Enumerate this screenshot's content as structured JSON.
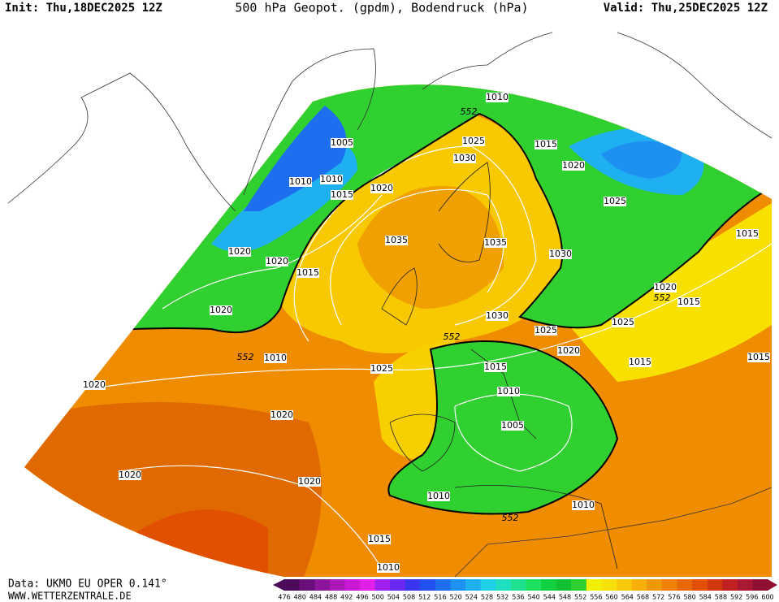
{
  "header": {
    "init": "Init: Thu,18DEC2025 12Z",
    "title": "500 hPa Geopot. (gpdm), Bodendruck (hPa)",
    "valid": "Valid: Thu,25DEC2025 12Z"
  },
  "footer": {
    "source": "Data: UKMO EU OPER 0.141°",
    "website": "WWW.WETTERZENTRALE.DE"
  },
  "colorbar": {
    "labels": [
      476,
      480,
      484,
      488,
      492,
      496,
      500,
      504,
      508,
      512,
      516,
      520,
      524,
      528,
      532,
      536,
      540,
      544,
      548,
      552,
      556,
      560,
      564,
      568,
      572,
      576,
      580,
      584,
      588,
      592,
      596,
      600
    ],
    "colors": [
      "#4b0a5a",
      "#6a0f7a",
      "#8a149a",
      "#aa18b8",
      "#c81ad2",
      "#e020e8",
      "#a020f0",
      "#6a28f0",
      "#3a36f0",
      "#2050f0",
      "#1e6ef0",
      "#1e90f0",
      "#1eb0f0",
      "#1ed0e8",
      "#1ee0c0",
      "#1ee090",
      "#1ee060",
      "#10d040",
      "#10c030",
      "#30d030",
      "#f0f000",
      "#f8e000",
      "#f8c800",
      "#f8b000",
      "#f09800",
      "#f08000",
      "#e86800",
      "#e05000",
      "#d03810",
      "#c02020",
      "#a81830",
      "#901030"
    ]
  },
  "contour_labels": [
    "1010",
    "552",
    "1005",
    "1025",
    "1015",
    "1030",
    "1020",
    "1010",
    "1010",
    "1020",
    "1015",
    "1025",
    "1035",
    "1035",
    "1015",
    "1020",
    "1020",
    "1030",
    "1015",
    "1020",
    "552",
    "1015",
    "1020",
    "1030",
    "1025",
    "552",
    "1025",
    "1020",
    "552",
    "1010",
    "1015",
    "1015",
    "1015",
    "1025",
    "1020",
    "1010",
    "1020",
    "1005",
    "1020",
    "1020",
    "1010",
    "552",
    "1010",
    "1015",
    "1010"
  ]
}
